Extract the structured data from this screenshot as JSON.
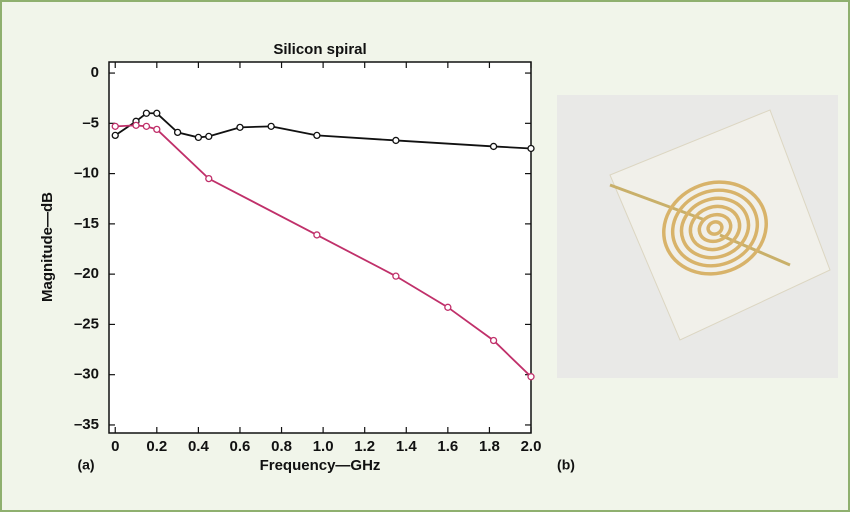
{
  "chart_data": {
    "type": "line",
    "title": "Silicon spiral",
    "x_label": "Frequency—GHz",
    "y_label": "Magnitude—dB",
    "panel_a": "(a)",
    "panel_b": "(b)",
    "xlim": [
      -0.03,
      2.0
    ],
    "ylim": [
      -35.8,
      1.1
    ],
    "xticks": [
      0,
      0.2,
      0.4,
      0.6,
      0.8,
      {
        "value": 1,
        "label": "1.0"
      },
      1.2,
      1.4,
      1.6,
      1.8,
      {
        "value": 2,
        "label": "2.0"
      }
    ],
    "yticks": [
      0,
      {
        "value": -5,
        "label": "–5"
      },
      {
        "value": -10,
        "label": "–10"
      },
      {
        "value": -15,
        "label": "–15"
      },
      {
        "value": -20,
        "label": "–20"
      },
      {
        "value": -25,
        "label": "–25"
      },
      {
        "value": -30,
        "label": "–30"
      },
      {
        "value": -35,
        "label": "–35"
      }
    ],
    "grid": false,
    "series": [
      {
        "color": "#111111",
        "x": [
          0,
          0.1,
          0.15,
          0.2,
          0.3,
          0.4,
          0.45,
          0.6,
          0.75,
          0.97,
          1.35,
          1.82,
          2.0
        ],
        "values": [
          -6.2,
          -4.8,
          -4.0,
          -4.0,
          -5.9,
          -6.4,
          -6.3,
          -5.4,
          -5.3,
          -6.2,
          -6.7,
          -7.3,
          -7.5
        ]
      },
      {
        "color": "#c0306a",
        "x": [
          0,
          0.1,
          0.15,
          0.2,
          0.45,
          0.97,
          1.35,
          1.6,
          1.82,
          2.0
        ],
        "values": [
          -5.3,
          -5.2,
          -5.3,
          -5.6,
          -10.5,
          -16.1,
          -20.2,
          -23.3,
          -26.6,
          -30.2
        ]
      }
    ]
  }
}
